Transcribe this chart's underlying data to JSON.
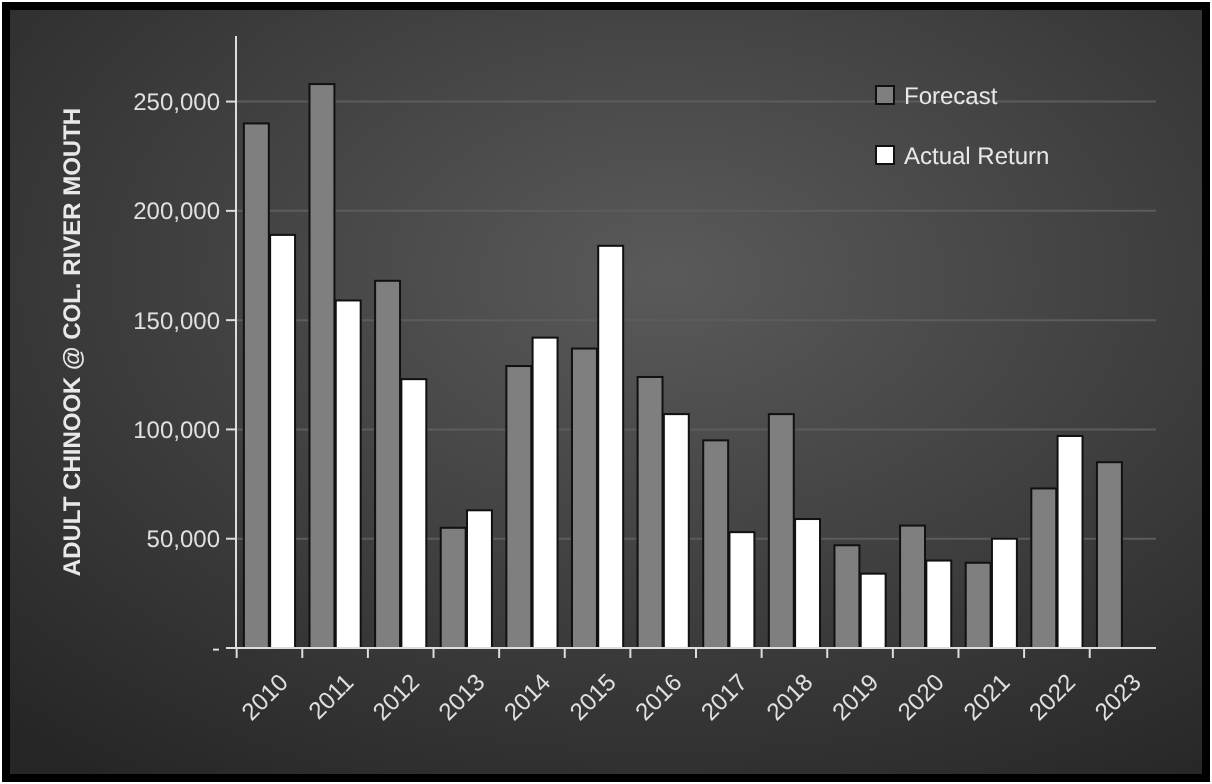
{
  "chart_data": {
    "type": "bar",
    "ylabel": "ADULT CHINOOK @ COL. RIVER MOUTH",
    "categories": [
      "2010",
      "2011",
      "2012",
      "2013",
      "2014",
      "2015",
      "2016",
      "2017",
      "2018",
      "2019",
      "2020",
      "2021",
      "2022",
      "2023"
    ],
    "series": [
      {
        "name": "Forecast",
        "color": "#7f7f7f",
        "values": [
          240000,
          258000,
          168000,
          55000,
          129000,
          137000,
          124000,
          95000,
          107000,
          47000,
          56000,
          39000,
          73000,
          85000
        ]
      },
      {
        "name": "Actual Return",
        "color": "#ffffff",
        "values": [
          189000,
          159000,
          123000,
          63000,
          142000,
          184000,
          107000,
          53000,
          59000,
          34000,
          40000,
          50000,
          97000,
          null
        ]
      }
    ],
    "ylim": [
      0,
      280000
    ],
    "yticks": [
      {
        "value": 0,
        "label": "-"
      },
      {
        "value": 50000,
        "label": "50,000"
      },
      {
        "value": 100000,
        "label": "100,000"
      },
      {
        "value": 150000,
        "label": "150,000"
      },
      {
        "value": 200000,
        "label": "200,000"
      },
      {
        "value": 250000,
        "label": "250,000"
      }
    ],
    "grid": "y",
    "legend": "top right"
  }
}
